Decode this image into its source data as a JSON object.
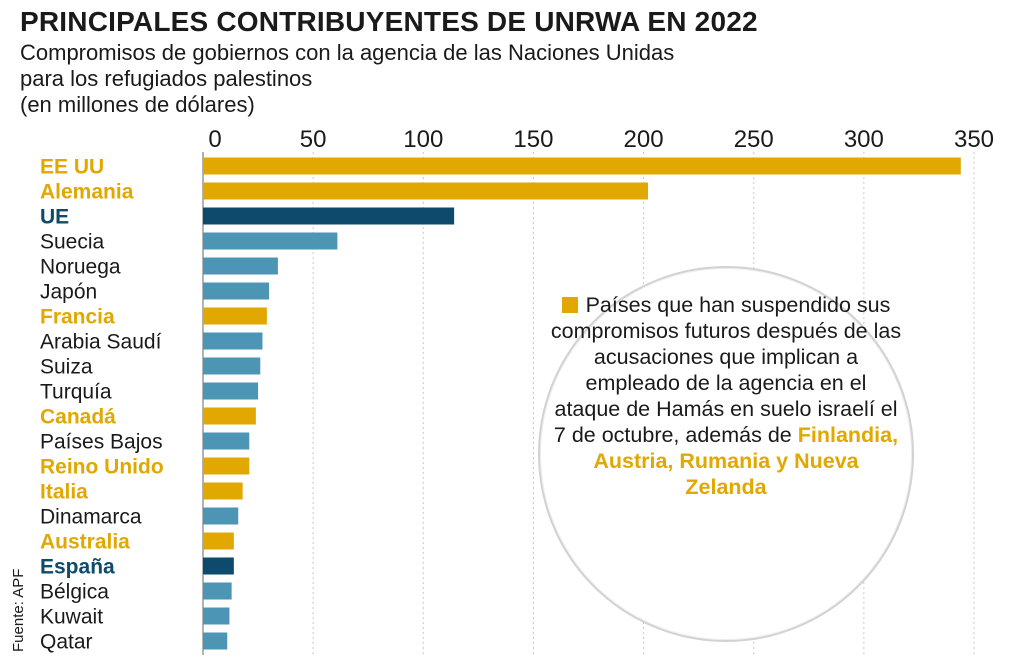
{
  "header": {
    "title": "PRINCIPALES CONTRIBUYENTES DE UNRWA EN 2022",
    "subtitle_lines": [
      "Compromisos de gobiernos con la agencia de las Naciones Unidas",
      "para los refugiados palestinos",
      "(en millones de dólares)"
    ]
  },
  "source": "Fuente: APF",
  "legend": {
    "text": "Países que han suspendido sus compromisos futuros después de las acusaciones que implican a empleado de la agencia en el ataque de Hamás en suelo israelí el 7 de octubre, además de",
    "highlight": "Finlandia, Austria, Rumania y Nueva Zelanda"
  },
  "colors": {
    "suspended": "#e0a800",
    "highlight": "#0d4a6b",
    "other": "#4d95b5",
    "axis": "#9a9a9a",
    "text": "#1a1a1a"
  },
  "chart_data": {
    "type": "bar",
    "orientation": "horizontal",
    "xlim": [
      0,
      350
    ],
    "ticks": [
      0,
      50,
      100,
      150,
      200,
      250,
      300,
      350
    ],
    "categories": [
      "EE UU",
      "Alemania",
      "UE",
      "Suecia",
      "Noruega",
      "Japón",
      "Francia",
      "Arabia Saudí",
      "Suiza",
      "Turquía",
      "Canadá",
      "Países Bajos",
      "Reino Unido",
      "Italia",
      "Dinamarca",
      "Australia",
      "España",
      "Bélgica",
      "Kuwait",
      "Qatar"
    ],
    "values": [
      344,
      202,
      114,
      61,
      34,
      30,
      29,
      27,
      26,
      25,
      24,
      21,
      21,
      18,
      16,
      14,
      14,
      13,
      12,
      11
    ],
    "groups": [
      "suspended",
      "suspended",
      "highlight",
      "other",
      "other",
      "other",
      "suspended",
      "other",
      "other",
      "other",
      "suspended",
      "other",
      "suspended",
      "suspended",
      "other",
      "suspended",
      "highlight",
      "other",
      "other",
      "other"
    ],
    "grid": true
  }
}
